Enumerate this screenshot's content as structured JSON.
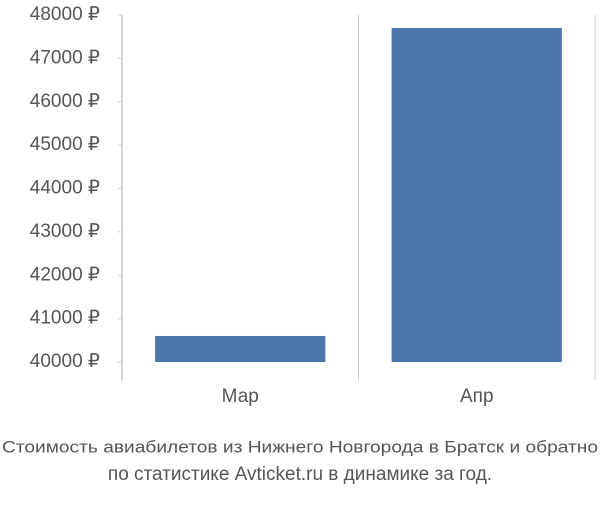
{
  "chart_data": {
    "type": "bar",
    "title": "Стоимость авиабилетов из Нижнего Новгорода в Братск и обратно",
    "subtitle": "по статистике Avticket.ru в динамике за год.",
    "categories": [
      "Мар",
      "Апр"
    ],
    "values": [
      40600,
      47700
    ],
    "color": "#4a76a8",
    "ylim": [
      40000,
      48000
    ],
    "yticks": [
      {
        "value": 40000,
        "label": "40000 ₽"
      },
      {
        "value": 41000,
        "label": "41000 ₽"
      },
      {
        "value": 42000,
        "label": "42000 ₽"
      },
      {
        "value": 43000,
        "label": "43000 ₽"
      },
      {
        "value": 44000,
        "label": "44000 ₽"
      },
      {
        "value": 45000,
        "label": "45000 ₽"
      },
      {
        "value": 46000,
        "label": "46000 ₽"
      },
      {
        "value": 47000,
        "label": "47000 ₽"
      },
      {
        "value": 48000,
        "label": "48000 ₽"
      }
    ],
    "grid": false
  }
}
